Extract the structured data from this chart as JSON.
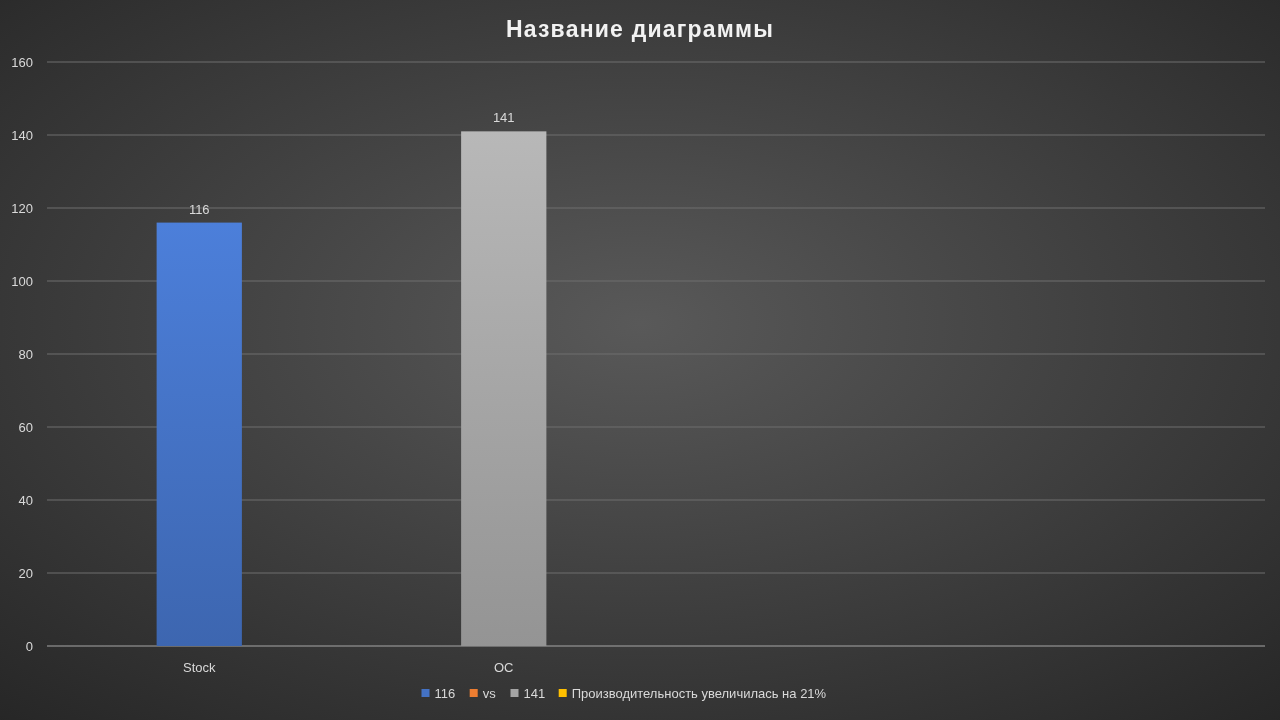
{
  "chart_data": {
    "type": "bar",
    "title": "Название диаграммы",
    "categories": [
      "Stock",
      "OC",
      null,
      null
    ],
    "series": [
      {
        "name": "116",
        "color": "#4472c4",
        "values": [
          116,
          null,
          null,
          null
        ]
      },
      {
        "name": "vs",
        "color": "#ed7d31",
        "values": [
          null,
          null,
          null,
          null
        ]
      },
      {
        "name": "141",
        "color": "#a5a5a5",
        "values": [
          null,
          141,
          null,
          null
        ]
      },
      {
        "name": "Производительность увеличилась на 21%",
        "color": "#ffc000",
        "values": [
          null,
          null,
          null,
          null
        ]
      }
    ],
    "ylim": [
      0,
      160
    ],
    "yticks": [
      0,
      20,
      40,
      60,
      80,
      100,
      120,
      140,
      160
    ],
    "grid": "y",
    "legend": "bottom",
    "data_labels": true
  }
}
